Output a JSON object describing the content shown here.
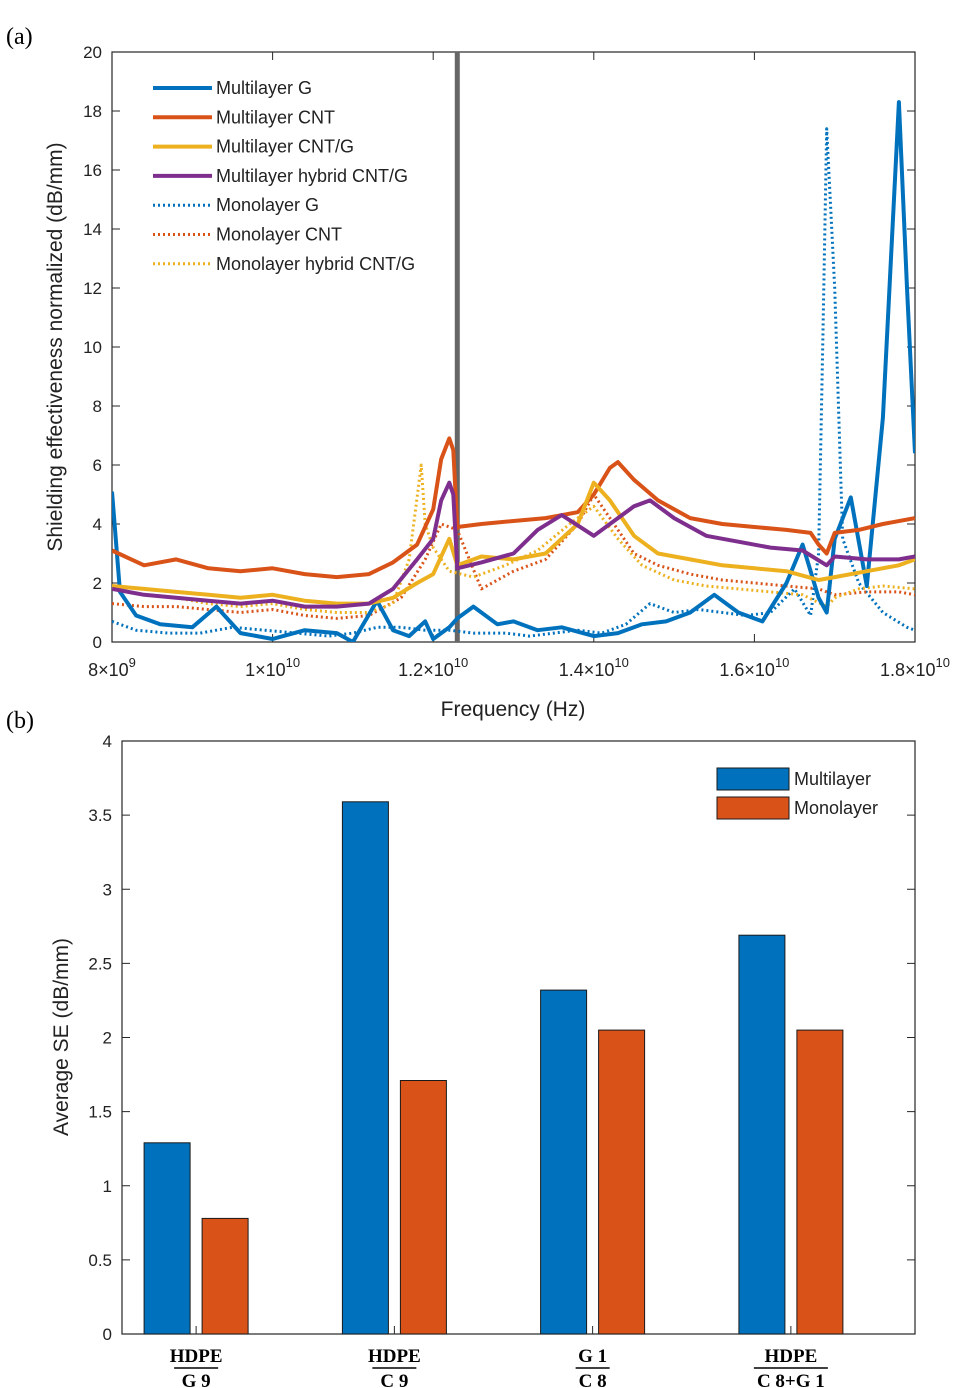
{
  "chart_data": [
    {
      "panel_label": "(a)",
      "type": "line",
      "xlabel": "Frequency (Hz)",
      "ylabel": "Shielding effectiveness normalized (dB/mm)",
      "xlim": [
        8000000000,
        18000000000
      ],
      "ylim": [
        0,
        20
      ],
      "x_ticks": [
        {
          "value": 8000000000,
          "mant": "8",
          "exp": "9"
        },
        {
          "value": 10000000000,
          "mant": "1",
          "exp": "10"
        },
        {
          "value": 12000000000,
          "mant": "1.2",
          "exp": "10"
        },
        {
          "value": 14000000000,
          "mant": "1.4",
          "exp": "10"
        },
        {
          "value": 16000000000,
          "mant": "1.6",
          "exp": "10"
        },
        {
          "value": 18000000000,
          "mant": "1.8",
          "exp": "10"
        }
      ],
      "y_ticks": [
        "0",
        "2",
        "4",
        "6",
        "8",
        "10",
        "12",
        "14",
        "16",
        "18",
        "20"
      ],
      "legend_position": "top-left",
      "grid": false,
      "vertical_line_x": 12300000000,
      "series": [
        {
          "name": "Multilayer G",
          "color": "#0072BD",
          "style": "solid",
          "x": [
            8.0,
            8.1,
            8.3,
            8.6,
            9.0,
            9.3,
            9.6,
            10.0,
            10.4,
            10.8,
            11.0,
            11.3,
            11.5,
            11.7,
            11.9,
            12.0,
            12.2,
            12.3,
            12.5,
            12.8,
            13.0,
            13.3,
            13.6,
            14.0,
            14.3,
            14.6,
            14.9,
            15.2,
            15.5,
            15.8,
            16.1,
            16.4,
            16.6,
            16.8,
            16.9,
            17.0,
            17.2,
            17.4,
            17.6,
            17.8,
            17.9,
            18.0
          ],
          "y": [
            5.1,
            1.7,
            0.9,
            0.6,
            0.5,
            1.2,
            0.3,
            0.1,
            0.4,
            0.3,
            0.0,
            1.4,
            0.4,
            0.2,
            0.7,
            0.1,
            0.5,
            0.8,
            1.2,
            0.6,
            0.7,
            0.4,
            0.5,
            0.2,
            0.3,
            0.6,
            0.7,
            1.0,
            1.6,
            1.0,
            0.7,
            2.0,
            3.3,
            1.5,
            1.0,
            3.5,
            4.9,
            1.9,
            7.6,
            18.3,
            12.0,
            6.4
          ]
        },
        {
          "name": "Multilayer CNT",
          "color": "#D95319",
          "style": "solid",
          "x": [
            8.0,
            8.4,
            8.8,
            9.2,
            9.6,
            10.0,
            10.4,
            10.8,
            11.2,
            11.5,
            11.8,
            12.0,
            12.1,
            12.2,
            12.25,
            12.3,
            12.6,
            13.0,
            13.4,
            13.8,
            14.0,
            14.2,
            14.3,
            14.5,
            14.8,
            15.2,
            15.6,
            16.0,
            16.4,
            16.7,
            16.8,
            16.9,
            17.0,
            17.3,
            17.6,
            18.0
          ],
          "y": [
            3.1,
            2.6,
            2.8,
            2.5,
            2.4,
            2.5,
            2.3,
            2.2,
            2.3,
            2.7,
            3.3,
            4.5,
            6.2,
            6.9,
            6.5,
            3.9,
            4.0,
            4.1,
            4.2,
            4.4,
            5.0,
            5.9,
            6.1,
            5.5,
            4.8,
            4.2,
            4.0,
            3.9,
            3.8,
            3.7,
            3.3,
            3.0,
            3.7,
            3.8,
            4.0,
            4.2
          ]
        },
        {
          "name": "Multilayer CNT/G",
          "color": "#EDB120",
          "style": "solid",
          "x": [
            8.0,
            8.4,
            8.8,
            9.2,
            9.6,
            10.0,
            10.4,
            10.8,
            11.2,
            11.5,
            11.8,
            12.0,
            12.2,
            12.3,
            12.6,
            13.0,
            13.4,
            13.8,
            14.0,
            14.2,
            14.5,
            14.8,
            15.2,
            15.6,
            16.0,
            16.4,
            16.8,
            17.0,
            17.4,
            17.8,
            18.0
          ],
          "y": [
            1.9,
            1.8,
            1.7,
            1.6,
            1.5,
            1.6,
            1.4,
            1.3,
            1.3,
            1.5,
            2.0,
            2.3,
            3.5,
            2.6,
            2.9,
            2.8,
            3.0,
            4.0,
            5.4,
            4.8,
            3.6,
            3.0,
            2.8,
            2.6,
            2.5,
            2.4,
            2.1,
            2.2,
            2.4,
            2.6,
            2.8
          ]
        },
        {
          "name": "Multilayer hybrid CNT/G",
          "color": "#7E2F8E",
          "style": "solid",
          "x": [
            8.0,
            8.4,
            8.8,
            9.2,
            9.6,
            10.0,
            10.4,
            10.8,
            11.2,
            11.5,
            11.8,
            12.0,
            12.1,
            12.2,
            12.25,
            12.3,
            12.6,
            13.0,
            13.3,
            13.6,
            14.0,
            14.3,
            14.5,
            14.7,
            15.0,
            15.4,
            15.8,
            16.2,
            16.6,
            16.9,
            17.0,
            17.4,
            17.8,
            18.0
          ],
          "y": [
            1.8,
            1.6,
            1.5,
            1.4,
            1.3,
            1.4,
            1.2,
            1.2,
            1.3,
            1.8,
            2.8,
            3.5,
            4.8,
            5.4,
            5.0,
            2.5,
            2.7,
            3.0,
            3.8,
            4.3,
            3.6,
            4.2,
            4.6,
            4.8,
            4.2,
            3.6,
            3.4,
            3.2,
            3.1,
            2.6,
            2.9,
            2.8,
            2.8,
            2.9
          ]
        },
        {
          "name": "Monolayer G",
          "color": "#0072BD",
          "style": "dotted",
          "x": [
            8.0,
            8.3,
            8.7,
            9.1,
            9.5,
            9.9,
            10.3,
            10.7,
            11.0,
            11.3,
            11.6,
            11.9,
            12.2,
            12.5,
            12.9,
            13.2,
            13.5,
            13.8,
            14.1,
            14.4,
            14.7,
            15.0,
            15.3,
            15.6,
            15.9,
            16.2,
            16.5,
            16.7,
            16.8,
            16.85,
            16.9,
            17.0,
            17.1,
            17.3,
            17.6,
            17.9,
            18.0
          ],
          "y": [
            0.7,
            0.4,
            0.3,
            0.3,
            0.5,
            0.4,
            0.3,
            0.2,
            0.3,
            0.5,
            0.5,
            0.4,
            0.4,
            0.3,
            0.3,
            0.2,
            0.3,
            0.4,
            0.3,
            0.6,
            1.3,
            1.0,
            1.1,
            1.0,
            0.9,
            1.0,
            1.8,
            0.9,
            3.0,
            10.0,
            17.4,
            12.0,
            3.5,
            2.0,
            1.0,
            0.5,
            0.4
          ]
        },
        {
          "name": "Monolayer CNT",
          "color": "#D95319",
          "style": "dotted",
          "x": [
            8.0,
            8.4,
            8.8,
            9.2,
            9.6,
            10.0,
            10.4,
            10.8,
            11.2,
            11.6,
            11.9,
            12.1,
            12.3,
            12.6,
            13.0,
            13.4,
            13.8,
            14.0,
            14.2,
            14.5,
            14.8,
            15.2,
            15.6,
            16.0,
            16.4,
            16.8,
            17.0,
            17.4,
            17.8,
            18.0
          ],
          "y": [
            1.3,
            1.2,
            1.2,
            1.1,
            1.0,
            1.1,
            0.9,
            0.8,
            0.9,
            1.5,
            2.8,
            4.0,
            3.8,
            1.8,
            2.4,
            2.8,
            4.0,
            5.0,
            4.2,
            3.0,
            2.6,
            2.3,
            2.1,
            2.0,
            1.9,
            1.8,
            1.6,
            1.7,
            1.7,
            1.6
          ]
        },
        {
          "name": "Monolayer hybrid CNT/G",
          "color": "#EDB120",
          "style": "dotted",
          "x": [
            8.0,
            8.4,
            8.8,
            9.2,
            9.6,
            10.0,
            10.4,
            10.8,
            11.2,
            11.5,
            11.7,
            11.8,
            11.85,
            11.9,
            12.0,
            12.2,
            12.5,
            12.9,
            13.3,
            13.7,
            14.0,
            14.3,
            14.6,
            15.0,
            15.4,
            15.8,
            16.2,
            16.6,
            16.9,
            17.0,
            17.3,
            17.6,
            18.0
          ],
          "y": [
            1.8,
            1.6,
            1.5,
            1.3,
            1.2,
            1.3,
            1.1,
            1.0,
            1.0,
            1.3,
            2.8,
            4.9,
            6.0,
            4.0,
            3.2,
            2.4,
            2.2,
            2.6,
            3.1,
            4.0,
            4.6,
            3.5,
            2.6,
            2.1,
            1.9,
            1.8,
            1.7,
            1.6,
            1.2,
            1.5,
            1.8,
            1.9,
            1.8
          ]
        }
      ]
    },
    {
      "panel_label": "(b)",
      "type": "bar",
      "ylabel": "Average SE (dB/mm)",
      "ylim": [
        0,
        4
      ],
      "y_ticks": [
        "0",
        "0.5",
        "1",
        "1.5",
        "2",
        "2.5",
        "3",
        "3.5",
        "4"
      ],
      "legend_position": "top-right",
      "categories": [
        {
          "num": "HDPE",
          "den": "G 9"
        },
        {
          "num": "HDPE",
          "den": "C 9"
        },
        {
          "num": "G 1",
          "den": "C 8"
        },
        {
          "num": "HDPE",
          "den": "C 8+G 1"
        }
      ],
      "series": [
        {
          "name": "Multilayer",
          "color": "#0072BD",
          "values": [
            1.29,
            3.59,
            2.32,
            2.69
          ]
        },
        {
          "name": "Monolayer",
          "color": "#D95319",
          "values": [
            0.78,
            1.71,
            2.05,
            2.05
          ]
        }
      ]
    }
  ]
}
